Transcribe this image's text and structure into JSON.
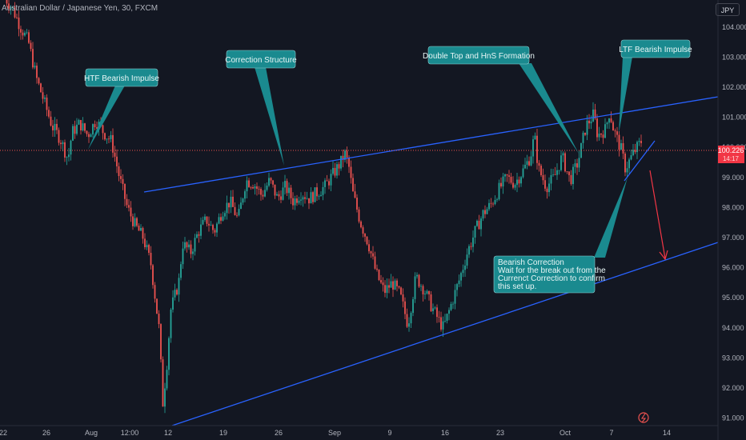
{
  "header": {
    "title": "Australian Dollar / Japanese Yen, 30, FXCM",
    "currency": "JPY"
  },
  "price_tag": {
    "value": "100.226",
    "countdown": "14:17"
  },
  "annotations": {
    "htf": "HTF Bearish Impulse",
    "correction": "Correction Structure",
    "double_top": "Double Top and HnS Formation",
    "ltf": "LTF Bearish Impulse",
    "bearish_correction": [
      "Bearish Correction",
      "Wait for the break out from the",
      "Currenct Correction to confirm",
      "this set up."
    ]
  },
  "chart_data": {
    "type": "candlestick",
    "title": "Australian Dollar / Japanese Yen, 30, FXCM",
    "y_axis": {
      "ticks": [
        104.0,
        103.0,
        102.0,
        101.0,
        100.0,
        99.0,
        98.0,
        97.0,
        96.0,
        95.0,
        94.0,
        93.0,
        92.0,
        91.0
      ],
      "ylim": [
        90.75,
        104.9
      ],
      "position": "right"
    },
    "x_axis": {
      "ticks": [
        "22",
        "26",
        "Aug",
        "12:00",
        "12",
        "19",
        "26",
        "Sep",
        "9",
        "16",
        "23",
        "Oct",
        "7",
        "14"
      ]
    },
    "current_price": 100.226,
    "up_color": "#26a69a",
    "down_color": "#ef5350",
    "accent_color": "#2962ff",
    "callout_color": "#1a8a8f",
    "approx_close_path": [
      [
        0,
        105.0
      ],
      [
        4,
        104.6
      ],
      [
        8,
        104.0
      ],
      [
        12,
        103.5
      ],
      [
        16,
        102.3
      ],
      [
        20,
        101.5
      ],
      [
        24,
        100.7
      ],
      [
        28,
        100.3
      ],
      [
        32,
        99.6
      ],
      [
        34,
        100.5
      ],
      [
        38,
        100.8
      ],
      [
        42,
        100.4
      ],
      [
        46,
        100.9
      ],
      [
        50,
        100.5
      ],
      [
        54,
        100.2
      ],
      [
        58,
        99.0
      ],
      [
        62,
        98.0
      ],
      [
        66,
        97.4
      ],
      [
        70,
        97.0
      ],
      [
        74,
        96.1
      ],
      [
        78,
        94.0
      ],
      [
        80,
        91.5
      ],
      [
        82,
        92.8
      ],
      [
        84,
        94.6
      ],
      [
        88,
        95.5
      ],
      [
        90,
        96.8
      ],
      [
        94,
        96.5
      ],
      [
        98,
        97.2
      ],
      [
        102,
        97.6
      ],
      [
        106,
        97.2
      ],
      [
        110,
        97.9
      ],
      [
        114,
        98.2
      ],
      [
        118,
        97.6
      ],
      [
        122,
        98.9
      ],
      [
        126,
        98.8
      ],
      [
        130,
        98.4
      ],
      [
        134,
        98.9
      ],
      [
        138,
        98.3
      ],
      [
        142,
        98.7
      ],
      [
        146,
        98.2
      ],
      [
        150,
        98.5
      ],
      [
        154,
        98.3
      ],
      [
        158,
        98.5
      ],
      [
        162,
        98.7
      ],
      [
        166,
        99.1
      ],
      [
        170,
        99.5
      ],
      [
        172,
        99.8
      ],
      [
        174,
        99.4
      ],
      [
        176,
        98.5
      ],
      [
        180,
        97.5
      ],
      [
        184,
        96.8
      ],
      [
        188,
        95.8
      ],
      [
        192,
        95.2
      ],
      [
        196,
        95.5
      ],
      [
        200,
        95.1
      ],
      [
        204,
        94.1
      ],
      [
        208,
        95.7
      ],
      [
        212,
        95.3
      ],
      [
        216,
        94.7
      ],
      [
        220,
        94.2
      ],
      [
        222,
        94.0
      ],
      [
        226,
        94.8
      ],
      [
        230,
        95.6
      ],
      [
        234,
        96.5
      ],
      [
        238,
        97.2
      ],
      [
        242,
        97.8
      ],
      [
        246,
        98.1
      ],
      [
        250,
        98.6
      ],
      [
        254,
        99.0
      ],
      [
        258,
        98.8
      ],
      [
        262,
        99.2
      ],
      [
        266,
        99.7
      ],
      [
        268,
        100.4
      ],
      [
        270,
        99.3
      ],
      [
        274,
        98.7
      ],
      [
        278,
        99.0
      ],
      [
        282,
        99.7
      ],
      [
        286,
        98.9
      ],
      [
        290,
        99.5
      ],
      [
        294,
        100.7
      ],
      [
        298,
        101.1
      ],
      [
        300,
        100.4
      ],
      [
        304,
        100.6
      ],
      [
        306,
        101.2
      ],
      [
        308,
        100.6
      ],
      [
        312,
        99.9
      ],
      [
        314,
        99.3
      ],
      [
        318,
        99.8
      ],
      [
        322,
        100.2
      ]
    ]
  }
}
